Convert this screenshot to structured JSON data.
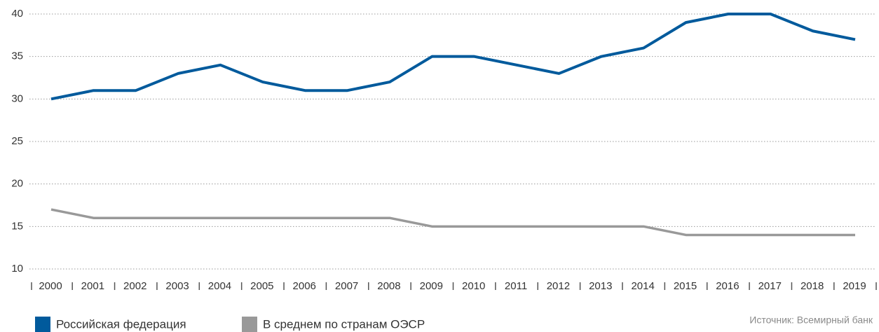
{
  "chart_data": {
    "type": "line",
    "categories": [
      "2000",
      "2001",
      "2002",
      "2003",
      "2004",
      "2005",
      "2006",
      "2007",
      "2008",
      "2009",
      "2010",
      "2011",
      "2012",
      "2013",
      "2014",
      "2015",
      "2016",
      "2017",
      "2018",
      "2019"
    ],
    "series": [
      {
        "name": "Российская федерация",
        "color": "#005a9c",
        "values": [
          30,
          31,
          31,
          33,
          34,
          32,
          31,
          31,
          32,
          35,
          35,
          34,
          33,
          35,
          36,
          39,
          40,
          40,
          38,
          37
        ]
      },
      {
        "name": "В среднем по странам ОЭСР",
        "color": "#999999",
        "values": [
          17,
          16,
          16,
          16,
          16,
          16,
          16,
          16,
          16,
          15,
          15,
          15,
          15,
          15,
          15,
          14,
          14,
          14,
          14,
          14
        ]
      }
    ],
    "ylim": [
      10,
      40
    ],
    "yticks": [
      10,
      15,
      20,
      25,
      30,
      35,
      40
    ],
    "grid": true,
    "legend": "bottom-left",
    "source": "Источник: Всемирный банк"
  }
}
